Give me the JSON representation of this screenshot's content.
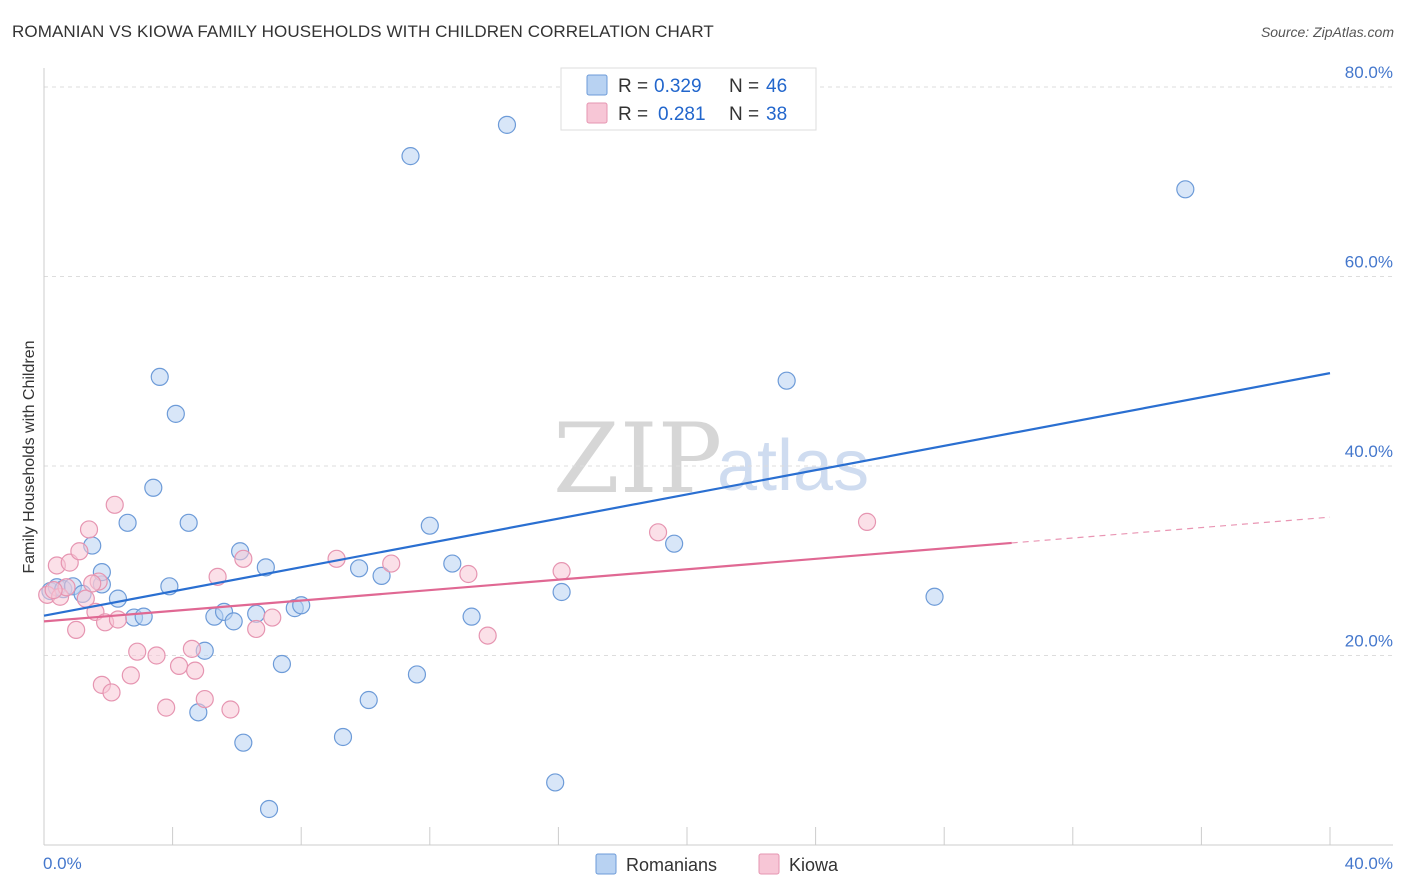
{
  "title": "ROMANIAN VS KIOWA FAMILY HOUSEHOLDS WITH CHILDREN CORRELATION CHART",
  "source": "Source: ZipAtlas.com",
  "watermark": {
    "zip": "ZIP",
    "atlas": "atlas"
  },
  "colors": {
    "blue_fill": "#b8d2f2",
    "blue_stroke": "#6d9bd8",
    "blue_line": "#2a6fd1",
    "pink_fill": "#f7c6d6",
    "pink_stroke": "#e695b1",
    "pink_line": "#e06893",
    "grid": "#dddddd",
    "tick_label": "#4477cc"
  },
  "legend": {
    "rows": [
      {
        "r_label": "R =",
        "r_value": "0.329",
        "n_label": "N =",
        "n_value": "46"
      },
      {
        "r_label": "R =",
        "r_value": "0.281",
        "n_label": "N =",
        "n_value": "38"
      }
    ]
  },
  "chart_data": {
    "type": "scatter",
    "title": "ROMANIAN VS KIOWA FAMILY HOUSEHOLDS WITH CHILDREN CORRELATION CHART",
    "xlabel": "",
    "ylabel": "Family Households with Children",
    "xlim": [
      0,
      40
    ],
    "ylim": [
      0,
      82
    ],
    "x_tick_labels": [
      {
        "value": 0,
        "label": "0.0%"
      },
      {
        "value": 40,
        "label": "40.0%"
      }
    ],
    "y_tick_labels": [
      {
        "value": 20,
        "label": "20.0%"
      },
      {
        "value": 40,
        "label": "40.0%"
      },
      {
        "value": 60,
        "label": "60.0%"
      },
      {
        "value": 80,
        "label": "80.0%"
      }
    ],
    "series": [
      {
        "name": "Romanians",
        "R": 0.329,
        "N": 46,
        "trend": {
          "x0": 0,
          "y0": 24.2,
          "x1": 40,
          "y1": 49.8,
          "solid_to": 40
        },
        "points": [
          [
            0.2,
            26.8
          ],
          [
            0.4,
            27.2
          ],
          [
            0.6,
            27.0
          ],
          [
            0.9,
            27.3
          ],
          [
            1.2,
            26.5
          ],
          [
            1.8,
            27.5
          ],
          [
            1.5,
            31.6
          ],
          [
            1.8,
            28.8
          ],
          [
            2.3,
            26.0
          ],
          [
            2.6,
            34.0
          ],
          [
            2.8,
            24.0
          ],
          [
            3.1,
            24.1
          ],
          [
            3.4,
            37.7
          ],
          [
            3.6,
            49.4
          ],
          [
            3.9,
            27.3
          ],
          [
            4.1,
            45.5
          ],
          [
            4.5,
            34.0
          ],
          [
            4.8,
            14.0
          ],
          [
            5.0,
            20.5
          ],
          [
            5.3,
            24.1
          ],
          [
            5.6,
            24.6
          ],
          [
            5.9,
            23.6
          ],
          [
            6.1,
            31.0
          ],
          [
            6.2,
            10.8
          ],
          [
            6.6,
            24.4
          ],
          [
            6.9,
            29.3
          ],
          [
            7.0,
            3.8
          ],
          [
            7.4,
            19.1
          ],
          [
            7.8,
            25.0
          ],
          [
            8.0,
            25.3
          ],
          [
            9.3,
            11.4
          ],
          [
            9.8,
            29.2
          ],
          [
            10.1,
            15.3
          ],
          [
            10.5,
            28.4
          ],
          [
            11.4,
            72.7
          ],
          [
            11.6,
            18.0
          ],
          [
            12.0,
            33.7
          ],
          [
            12.7,
            29.7
          ],
          [
            13.3,
            24.1
          ],
          [
            14.4,
            76.0
          ],
          [
            15.9,
            6.6
          ],
          [
            16.1,
            26.7
          ],
          [
            19.6,
            31.8
          ],
          [
            23.1,
            49.0
          ],
          [
            27.7,
            26.2
          ],
          [
            35.5,
            69.2
          ]
        ]
      },
      {
        "name": "Kiowa",
        "R": 0.281,
        "N": 38,
        "trend": {
          "x0": 0,
          "y0": 23.6,
          "x1": 40,
          "y1": 34.6,
          "solid_to": 30.1
        },
        "points": [
          [
            0.1,
            26.4
          ],
          [
            0.4,
            29.5
          ],
          [
            0.5,
            26.2
          ],
          [
            0.7,
            27.2
          ],
          [
            0.8,
            29.8
          ],
          [
            1.0,
            22.7
          ],
          [
            1.1,
            31.0
          ],
          [
            1.3,
            26.0
          ],
          [
            1.4,
            33.3
          ],
          [
            1.6,
            24.6
          ],
          [
            1.7,
            27.8
          ],
          [
            1.8,
            16.9
          ],
          [
            1.9,
            23.5
          ],
          [
            2.1,
            16.1
          ],
          [
            2.2,
            35.9
          ],
          [
            2.3,
            23.8
          ],
          [
            2.7,
            17.9
          ],
          [
            2.9,
            20.4
          ],
          [
            3.5,
            20.0
          ],
          [
            3.8,
            14.5
          ],
          [
            4.2,
            18.9
          ],
          [
            4.6,
            20.7
          ],
          [
            4.7,
            18.4
          ],
          [
            5.0,
            15.4
          ],
          [
            5.4,
            28.3
          ],
          [
            5.8,
            14.3
          ],
          [
            6.2,
            30.2
          ],
          [
            6.6,
            22.8
          ],
          [
            7.1,
            24.0
          ],
          [
            9.1,
            30.2
          ],
          [
            10.8,
            29.7
          ],
          [
            13.2,
            28.6
          ],
          [
            13.8,
            22.1
          ],
          [
            16.1,
            28.9
          ],
          [
            19.1,
            33.0
          ],
          [
            25.6,
            34.1
          ],
          [
            0.3,
            26.9
          ],
          [
            1.5,
            27.6
          ]
        ]
      }
    ]
  },
  "bottom_legend": [
    "Romanians",
    "Kiowa"
  ]
}
